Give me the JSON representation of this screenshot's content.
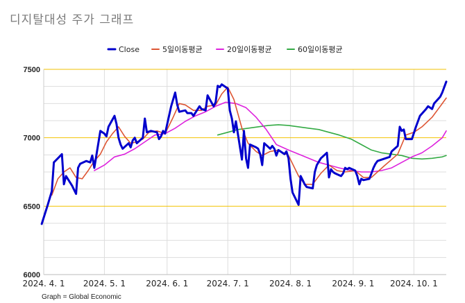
{
  "title": "디지탈대성 주가 그래프",
  "footer": "Graph = Global Economic",
  "colors": {
    "close": "#0000cc",
    "ma5": "#dd5533",
    "ma20": "#dd22dd",
    "ma60": "#33aa44",
    "grid_major": "#f2c200",
    "grid_minor": "#dddddd"
  },
  "chart_data": {
    "type": "line",
    "title": "디지탈대성 주가 그래프",
    "xlabel": "",
    "ylabel": "",
    "ylim": [
      6000,
      7500
    ],
    "yticks": [
      6000,
      6500,
      7000,
      7500
    ],
    "xlim": [
      "2024-04-01",
      "2024-10-17"
    ],
    "xticks": [
      {
        "date": "2024-04-01",
        "label": "2024. 4. 1"
      },
      {
        "date": "2024-05-01",
        "label": "2024. 5. 1"
      },
      {
        "date": "2024-06-01",
        "label": "2024. 6. 1"
      },
      {
        "date": "2024-07-01",
        "label": "2024. 7. 1"
      },
      {
        "date": "2024-08-01",
        "label": "2024. 8. 1"
      },
      {
        "date": "2024-09-01",
        "label": "2024. 9. 1"
      },
      {
        "date": "2024-10-01",
        "label": "2024. 10. 1"
      }
    ],
    "grid": true,
    "legend_position": "top-center",
    "series": [
      {
        "name": "Close",
        "color_key": "close",
        "points": [
          [
            "2024-03-31",
            6370
          ],
          [
            "2024-04-03",
            6510
          ],
          [
            "2024-04-05",
            6610
          ],
          [
            "2024-04-06",
            6820
          ],
          [
            "2024-04-08",
            6850
          ],
          [
            "2024-04-10",
            6880
          ],
          [
            "2024-04-11",
            6660
          ],
          [
            "2024-04-12",
            6720
          ],
          [
            "2024-04-15",
            6650
          ],
          [
            "2024-04-17",
            6590
          ],
          [
            "2024-04-18",
            6780
          ],
          [
            "2024-04-19",
            6810
          ],
          [
            "2024-04-22",
            6830
          ],
          [
            "2024-04-24",
            6820
          ],
          [
            "2024-04-25",
            6870
          ],
          [
            "2024-04-26",
            6780
          ],
          [
            "2024-04-29",
            7050
          ],
          [
            "2024-05-01",
            7030
          ],
          [
            "2024-05-02",
            7010
          ],
          [
            "2024-05-03",
            7080
          ],
          [
            "2024-05-06",
            7160
          ],
          [
            "2024-05-07",
            7100
          ],
          [
            "2024-05-08",
            7000
          ],
          [
            "2024-05-09",
            6950
          ],
          [
            "2024-05-10",
            6920
          ],
          [
            "2024-05-13",
            6960
          ],
          [
            "2024-05-14",
            6930
          ],
          [
            "2024-05-15",
            6980
          ],
          [
            "2024-05-16",
            7000
          ],
          [
            "2024-05-17",
            6960
          ],
          [
            "2024-05-20",
            7000
          ],
          [
            "2024-05-21",
            7140
          ],
          [
            "2024-05-22",
            7040
          ],
          [
            "2024-05-24",
            7050
          ],
          [
            "2024-05-27",
            7040
          ],
          [
            "2024-05-28",
            6990
          ],
          [
            "2024-05-29",
            7010
          ],
          [
            "2024-05-30",
            7050
          ],
          [
            "2024-05-31",
            7030
          ],
          [
            "2024-06-03",
            7230
          ],
          [
            "2024-06-04",
            7280
          ],
          [
            "2024-06-05",
            7330
          ],
          [
            "2024-06-06",
            7240
          ],
          [
            "2024-06-07",
            7190
          ],
          [
            "2024-06-10",
            7200
          ],
          [
            "2024-06-11",
            7180
          ],
          [
            "2024-06-13",
            7180
          ],
          [
            "2024-06-14",
            7160
          ],
          [
            "2024-06-17",
            7230
          ],
          [
            "2024-06-18",
            7210
          ],
          [
            "2024-06-20",
            7200
          ],
          [
            "2024-06-21",
            7310
          ],
          [
            "2024-06-24",
            7230
          ],
          [
            "2024-06-25",
            7260
          ],
          [
            "2024-06-26",
            7380
          ],
          [
            "2024-06-27",
            7370
          ],
          [
            "2024-06-28",
            7390
          ],
          [
            "2024-07-01",
            7360
          ],
          [
            "2024-07-02",
            7200
          ],
          [
            "2024-07-03",
            7140
          ],
          [
            "2024-07-04",
            7040
          ],
          [
            "2024-07-05",
            7120
          ],
          [
            "2024-07-08",
            6840
          ],
          [
            "2024-07-09",
            7050
          ],
          [
            "2024-07-10",
            6850
          ],
          [
            "2024-07-11",
            6780
          ],
          [
            "2024-07-12",
            6950
          ],
          [
            "2024-07-15",
            6930
          ],
          [
            "2024-07-16",
            6920
          ],
          [
            "2024-07-17",
            6880
          ],
          [
            "2024-07-18",
            6800
          ],
          [
            "2024-07-19",
            6960
          ],
          [
            "2024-07-22",
            6920
          ],
          [
            "2024-07-23",
            6940
          ],
          [
            "2024-07-24",
            6920
          ],
          [
            "2024-07-25",
            6870
          ],
          [
            "2024-07-26",
            6910
          ],
          [
            "2024-07-29",
            6880
          ],
          [
            "2024-07-30",
            6900
          ],
          [
            "2024-07-31",
            6850
          ],
          [
            "2024-08-01",
            6700
          ],
          [
            "2024-08-02",
            6600
          ],
          [
            "2024-08-05",
            6510
          ],
          [
            "2024-08-06",
            6720
          ],
          [
            "2024-08-07",
            6690
          ],
          [
            "2024-08-08",
            6660
          ],
          [
            "2024-08-09",
            6640
          ],
          [
            "2024-08-12",
            6630
          ],
          [
            "2024-08-13",
            6750
          ],
          [
            "2024-08-14",
            6800
          ],
          [
            "2024-08-16",
            6850
          ],
          [
            "2024-08-19",
            6890
          ],
          [
            "2024-08-20",
            6710
          ],
          [
            "2024-08-21",
            6770
          ],
          [
            "2024-08-22",
            6750
          ],
          [
            "2024-08-23",
            6740
          ],
          [
            "2024-08-26",
            6720
          ],
          [
            "2024-08-27",
            6740
          ],
          [
            "2024-08-28",
            6780
          ],
          [
            "2024-08-29",
            6770
          ],
          [
            "2024-08-30",
            6780
          ],
          [
            "2024-09-02",
            6760
          ],
          [
            "2024-09-03",
            6720
          ],
          [
            "2024-09-04",
            6660
          ],
          [
            "2024-09-05",
            6700
          ],
          [
            "2024-09-06",
            6690
          ],
          [
            "2024-09-09",
            6700
          ],
          [
            "2024-09-10",
            6740
          ],
          [
            "2024-09-11",
            6780
          ],
          [
            "2024-09-12",
            6810
          ],
          [
            "2024-09-13",
            6830
          ],
          [
            "2024-09-19",
            6860
          ],
          [
            "2024-09-20",
            6900
          ],
          [
            "2024-09-23",
            6940
          ],
          [
            "2024-09-24",
            7080
          ],
          [
            "2024-09-25",
            7050
          ],
          [
            "2024-09-26",
            7060
          ],
          [
            "2024-09-27",
            6990
          ],
          [
            "2024-09-30",
            6990
          ],
          [
            "2024-10-02",
            7080
          ],
          [
            "2024-10-04",
            7160
          ],
          [
            "2024-10-07",
            7210
          ],
          [
            "2024-10-08",
            7230
          ],
          [
            "2024-10-10",
            7210
          ],
          [
            "2024-10-11",
            7250
          ],
          [
            "2024-10-14",
            7300
          ],
          [
            "2024-10-15",
            7330
          ],
          [
            "2024-10-17",
            7410
          ]
        ]
      },
      {
        "name": "5일이동평균",
        "color_key": "ma5",
        "points": [
          [
            "2024-04-05",
            6580
          ],
          [
            "2024-04-08",
            6700
          ],
          [
            "2024-04-11",
            6750
          ],
          [
            "2024-04-14",
            6780
          ],
          [
            "2024-04-17",
            6710
          ],
          [
            "2024-04-20",
            6700
          ],
          [
            "2024-04-23",
            6760
          ],
          [
            "2024-04-26",
            6830
          ],
          [
            "2024-04-29",
            6880
          ],
          [
            "2024-05-02",
            6970
          ],
          [
            "2024-05-05",
            7030
          ],
          [
            "2024-05-08",
            7080
          ],
          [
            "2024-05-11",
            7010
          ],
          [
            "2024-05-14",
            6960
          ],
          [
            "2024-05-17",
            6970
          ],
          [
            "2024-05-20",
            6990
          ],
          [
            "2024-05-23",
            7040
          ],
          [
            "2024-05-27",
            7050
          ],
          [
            "2024-05-31",
            7030
          ],
          [
            "2024-06-04",
            7150
          ],
          [
            "2024-06-07",
            7250
          ],
          [
            "2024-06-10",
            7240
          ],
          [
            "2024-06-14",
            7200
          ],
          [
            "2024-06-18",
            7200
          ],
          [
            "2024-06-21",
            7230
          ],
          [
            "2024-06-25",
            7240
          ],
          [
            "2024-06-28",
            7320
          ],
          [
            "2024-07-01",
            7370
          ],
          [
            "2024-07-04",
            7280
          ],
          [
            "2024-07-08",
            7070
          ],
          [
            "2024-07-11",
            6960
          ],
          [
            "2024-07-15",
            6900
          ],
          [
            "2024-07-18",
            6870
          ],
          [
            "2024-07-22",
            6900
          ],
          [
            "2024-07-26",
            6910
          ],
          [
            "2024-07-31",
            6870
          ],
          [
            "2024-08-05",
            6720
          ],
          [
            "2024-08-08",
            6660
          ],
          [
            "2024-08-12",
            6660
          ],
          [
            "2024-08-16",
            6740
          ],
          [
            "2024-08-20",
            6800
          ],
          [
            "2024-08-24",
            6760
          ],
          [
            "2024-08-28",
            6750
          ],
          [
            "2024-09-02",
            6760
          ],
          [
            "2024-09-06",
            6710
          ],
          [
            "2024-09-10",
            6710
          ],
          [
            "2024-09-16",
            6790
          ],
          [
            "2024-09-23",
            6880
          ],
          [
            "2024-09-27",
            7020
          ],
          [
            "2024-10-01",
            7040
          ],
          [
            "2024-10-05",
            7080
          ],
          [
            "2024-10-10",
            7150
          ],
          [
            "2024-10-14",
            7230
          ],
          [
            "2024-10-17",
            7290
          ]
        ]
      },
      {
        "name": "20일이동평균",
        "color_key": "ma20",
        "points": [
          [
            "2024-04-26",
            6760
          ],
          [
            "2024-05-01",
            6800
          ],
          [
            "2024-05-06",
            6860
          ],
          [
            "2024-05-11",
            6880
          ],
          [
            "2024-05-16",
            6920
          ],
          [
            "2024-05-21",
            6970
          ],
          [
            "2024-05-26",
            7020
          ],
          [
            "2024-05-31",
            7030
          ],
          [
            "2024-06-05",
            7070
          ],
          [
            "2024-06-10",
            7120
          ],
          [
            "2024-06-15",
            7160
          ],
          [
            "2024-06-20",
            7190
          ],
          [
            "2024-06-25",
            7230
          ],
          [
            "2024-06-30",
            7260
          ],
          [
            "2024-07-05",
            7250
          ],
          [
            "2024-07-10",
            7220
          ],
          [
            "2024-07-15",
            7150
          ],
          [
            "2024-07-20",
            7060
          ],
          [
            "2024-07-25",
            6950
          ],
          [
            "2024-07-31",
            6910
          ],
          [
            "2024-08-05",
            6880
          ],
          [
            "2024-08-10",
            6850
          ],
          [
            "2024-08-15",
            6820
          ],
          [
            "2024-08-20",
            6800
          ],
          [
            "2024-08-25",
            6780
          ],
          [
            "2024-08-31",
            6760
          ],
          [
            "2024-09-05",
            6750
          ],
          [
            "2024-09-10",
            6750
          ],
          [
            "2024-09-15",
            6760
          ],
          [
            "2024-09-20",
            6780
          ],
          [
            "2024-09-25",
            6820
          ],
          [
            "2024-09-30",
            6860
          ],
          [
            "2024-10-05",
            6890
          ],
          [
            "2024-10-10",
            6940
          ],
          [
            "2024-10-15",
            7000
          ],
          [
            "2024-10-17",
            7050
          ]
        ]
      },
      {
        "name": "60일이동평균",
        "color_key": "ma60",
        "points": [
          [
            "2024-06-26",
            7020
          ],
          [
            "2024-07-01",
            7040
          ],
          [
            "2024-07-06",
            7060
          ],
          [
            "2024-07-11",
            7070
          ],
          [
            "2024-07-16",
            7080
          ],
          [
            "2024-07-21",
            7090
          ],
          [
            "2024-07-26",
            7095
          ],
          [
            "2024-07-31",
            7090
          ],
          [
            "2024-08-05",
            7080
          ],
          [
            "2024-08-10",
            7070
          ],
          [
            "2024-08-15",
            7060
          ],
          [
            "2024-08-20",
            7040
          ],
          [
            "2024-08-25",
            7020
          ],
          [
            "2024-08-31",
            6990
          ],
          [
            "2024-09-05",
            6950
          ],
          [
            "2024-09-10",
            6910
          ],
          [
            "2024-09-15",
            6890
          ],
          [
            "2024-09-20",
            6880
          ],
          [
            "2024-09-25",
            6870
          ],
          [
            "2024-09-30",
            6850
          ],
          [
            "2024-10-05",
            6845
          ],
          [
            "2024-10-10",
            6850
          ],
          [
            "2024-10-15",
            6860
          ],
          [
            "2024-10-17",
            6870
          ]
        ]
      }
    ]
  }
}
